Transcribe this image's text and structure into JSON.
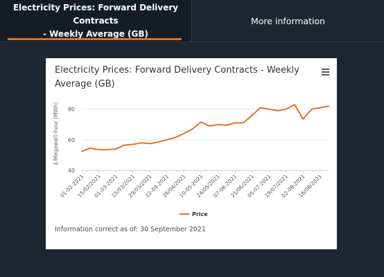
{
  "tabs": [
    {
      "label_line1": "Electricity Prices: Forward Delivery Contracts",
      "label_line2": "- Weekly Average (GB)"
    },
    {
      "label": "More information"
    }
  ],
  "footnote": "Information correct as of: 30 September 2021",
  "colors": {
    "background": "#1c2731",
    "active_tab": "#141d25",
    "accent": "#e36f25",
    "series": "#e36f25"
  },
  "icons": {
    "menu": "hamburger-menu-icon"
  },
  "chart_data": {
    "type": "line",
    "title": "Electricity Prices: Forward Delivery Contracts - Weekly Average (GB)",
    "ylabel": "£/Megawatt-hour (MWh)",
    "xlabel": "",
    "ylim": [
      40,
      88
    ],
    "yticks": [
      40,
      60,
      80
    ],
    "grid": true,
    "legend_position": "bottom",
    "x_tick_labels": [
      "01-02-2021",
      "15/02/2021",
      "01-03-2021",
      "15/03/2021",
      "29/03/2021",
      "12-04-2021",
      "26/04/2021",
      "10-05-2021",
      "24/05/2021",
      "07-06-2021",
      "21/06/2021",
      "05-07-2021",
      "19/07/2021",
      "02-08-2021",
      "16/08/2021"
    ],
    "x": [
      "01-02-2021",
      "08-02-2021",
      "15-02-2021",
      "22-02-2021",
      "01-03-2021",
      "08-03-2021",
      "15-03-2021",
      "22-03-2021",
      "29-03-2021",
      "05-04-2021",
      "12-04-2021",
      "19-04-2021",
      "26-04-2021",
      "03-05-2021",
      "10-05-2021",
      "17-05-2021",
      "24-05-2021",
      "31-05-2021",
      "07-06-2021",
      "14-06-2021",
      "21-06-2021",
      "28-06-2021",
      "05-07-2021",
      "12-07-2021",
      "19-07-2021",
      "26-07-2021",
      "02-08-2021",
      "09-08-2021",
      "16-08-2021",
      "23-08-2021"
    ],
    "series": [
      {
        "name": "Price",
        "values": [
          52.5,
          54.5,
          53.5,
          53.5,
          54.0,
          56.5,
          57.0,
          58.0,
          57.5,
          58.5,
          60.0,
          61.5,
          64.0,
          67.0,
          71.5,
          69.0,
          70.0,
          69.5,
          71.0,
          71.0,
          76.0,
          81.0,
          80.0,
          79.0,
          80.0,
          83.0,
          73.5,
          80.0,
          81.0,
          82.0
        ]
      }
    ]
  }
}
